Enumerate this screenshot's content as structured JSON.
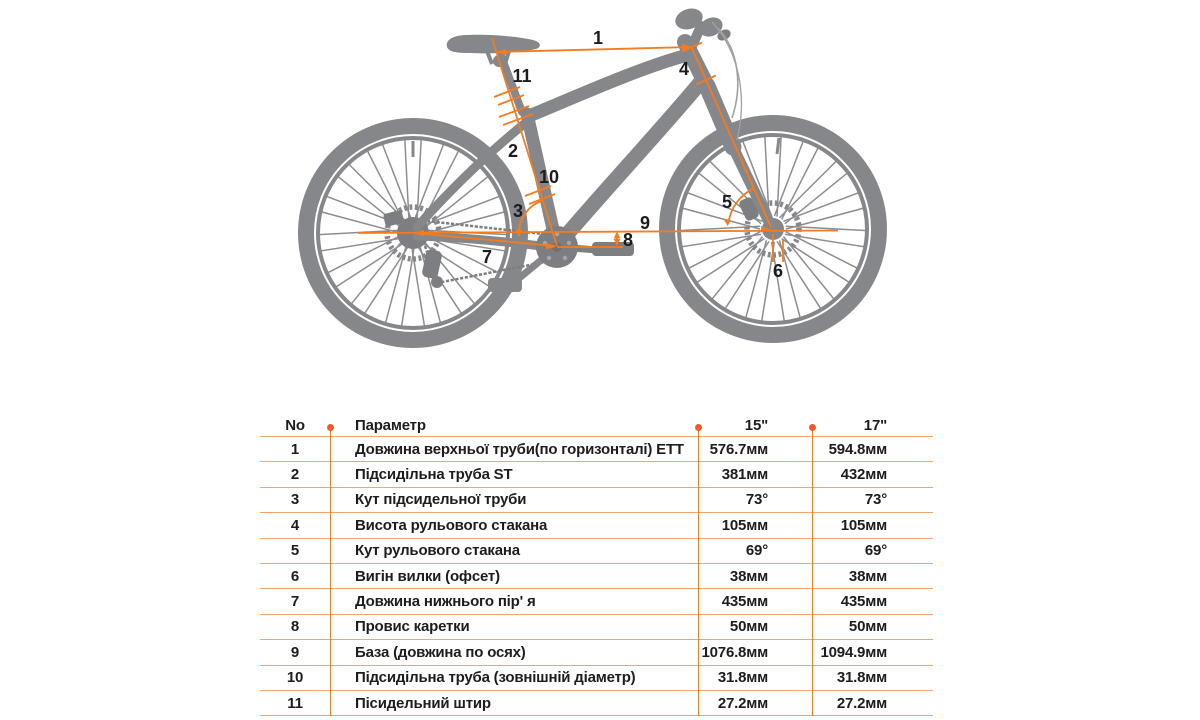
{
  "colors": {
    "accent_orange": "#f47b20",
    "table_line_light": "#f6a46a",
    "dot_orange": "#f1582a",
    "bike_gray": "#85878a",
    "bike_gray_dark": "#7c7e81",
    "text_dark": "#1d1d1f"
  },
  "diagram": {
    "labels": [
      "1",
      "2",
      "3",
      "4",
      "5",
      "6",
      "7",
      "8",
      "9",
      "10",
      "11"
    ]
  },
  "table": {
    "headers": {
      "no": "No",
      "param": "Параметр",
      "size15": "15\"",
      "size17": "17\""
    },
    "rows": [
      {
        "no": "1",
        "param": "Довжина верхньої труби(по горизонталі) ЕТТ",
        "v15": "576.7мм",
        "v17": "594.8мм"
      },
      {
        "no": "2",
        "param": "Підсидільна труба ST",
        "v15": "381мм",
        "v17": "432мм"
      },
      {
        "no": "3",
        "param": "Кут підсидельної труби",
        "v15": "73°",
        "v17": "73°"
      },
      {
        "no": "4",
        "param": "Висота рульового стакана",
        "v15": "105мм",
        "v17": "105мм"
      },
      {
        "no": "5",
        "param": "Кут рульового стакана",
        "v15": "69°",
        "v17": "69°"
      },
      {
        "no": "6",
        "param": "Вигін вилки (офсет)",
        "v15": "38мм",
        "v17": "38мм"
      },
      {
        "no": "7",
        "param": "Довжина нижнього пір' я",
        "v15": "435мм",
        "v17": "435мм"
      },
      {
        "no": "8",
        "param": "Провис каретки",
        "v15": "50мм",
        "v17": "50мм"
      },
      {
        "no": "9",
        "param": "База (довжина по осях)",
        "v15": "1076.8мм",
        "v17": "1094.9мм"
      },
      {
        "no": "10",
        "param": "Підсидільна труба (зовнішній діаметр)",
        "v15": "31.8мм",
        "v17": "31.8мм"
      },
      {
        "no": "11",
        "param": "Пісидельний штир",
        "v15": "27.2мм",
        "v17": "27.2мм"
      }
    ]
  }
}
